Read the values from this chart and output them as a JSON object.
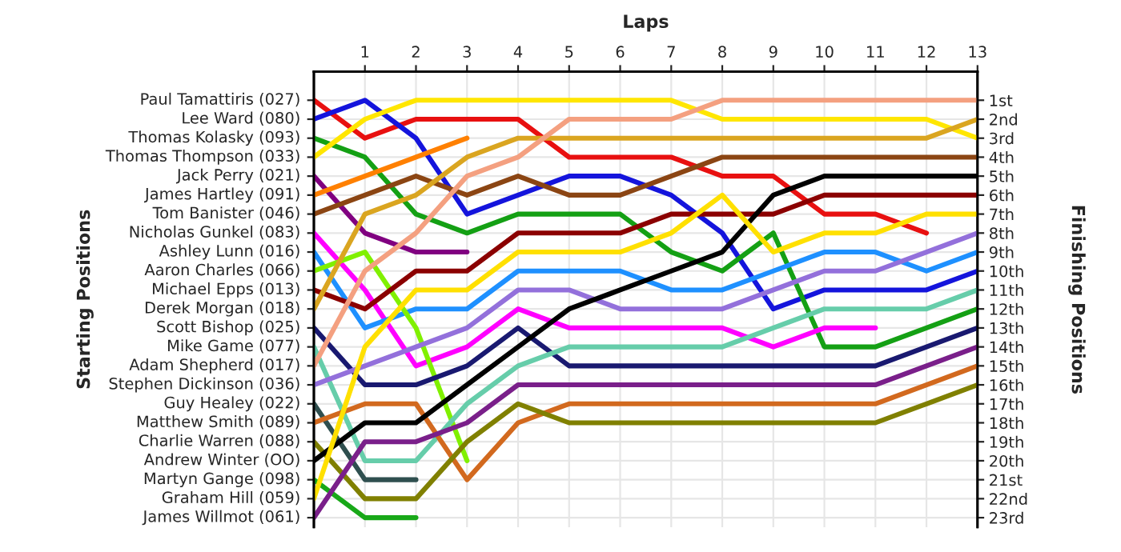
{
  "chart_data": {
    "type": "line",
    "xlabel": "Laps",
    "annotations": [
      "Starting Positions"
    ],
    "y2label": "Finishing Positions",
    "x": [
      0,
      1,
      2,
      3,
      4,
      5,
      6,
      7,
      8,
      9,
      10,
      11,
      12,
      13
    ],
    "xlim": [
      0,
      13
    ],
    "xticks": [
      1,
      2,
      3,
      4,
      5,
      6,
      7,
      8,
      9,
      10,
      11,
      12,
      13
    ],
    "y2lim": [
      23.5,
      -0.5
    ],
    "y2ticks": [
      {
        "value": 1,
        "label": "1st"
      },
      {
        "value": 2,
        "label": "2nd"
      },
      {
        "value": 3,
        "label": "3rd"
      },
      {
        "value": 4,
        "label": "4th"
      },
      {
        "value": 5,
        "label": "5th"
      },
      {
        "value": 6,
        "label": "6th"
      },
      {
        "value": 7,
        "label": "7th"
      },
      {
        "value": 8,
        "label": "8th"
      },
      {
        "value": 9,
        "label": "9th"
      },
      {
        "value": 10,
        "label": "10th"
      },
      {
        "value": 11,
        "label": "11th"
      },
      {
        "value": 12,
        "label": "12th"
      },
      {
        "value": 13,
        "label": "13th"
      },
      {
        "value": 14,
        "label": "14th"
      },
      {
        "value": 15,
        "label": "15th"
      },
      {
        "value": 16,
        "label": "16th"
      },
      {
        "value": 17,
        "label": "17th"
      },
      {
        "value": 18,
        "label": "18th"
      },
      {
        "value": 19,
        "label": "19th"
      },
      {
        "value": 20,
        "label": "20th"
      },
      {
        "value": 21,
        "label": "21st"
      },
      {
        "value": 22,
        "label": "22nd"
      },
      {
        "value": 23,
        "label": "23rd"
      }
    ],
    "grid": true,
    "marker": "none",
    "line_style": "solid",
    "series": [
      {
        "name": "Paul Tamattiris (027)",
        "axis": "y2",
        "color": "#e81010",
        "values": [
          1,
          3,
          2,
          2,
          2,
          4,
          4,
          4,
          5,
          5,
          7,
          7,
          8,
          null
        ]
      },
      {
        "name": "Lee Ward (080)",
        "axis": "y2",
        "color": "#1414dc",
        "values": [
          2,
          1,
          3,
          7,
          6,
          5,
          5,
          6,
          8,
          12,
          11,
          11,
          11,
          10
        ]
      },
      {
        "name": "Thomas Kolasky (093)",
        "axis": "y2",
        "color": "#14a014",
        "values": [
          3,
          4,
          7,
          8,
          7,
          7,
          7,
          9,
          10,
          8,
          14,
          14,
          13,
          12
        ]
      },
      {
        "name": "Thomas Thompson (033)",
        "axis": "y2",
        "color": "#ffe600",
        "values": [
          4,
          2,
          1,
          1,
          1,
          1,
          1,
          1,
          2,
          2,
          2,
          2,
          2,
          3
        ]
      },
      {
        "name": "Jack Perry (021)",
        "axis": "y2",
        "color": "#800080",
        "values": [
          5,
          8,
          9,
          9,
          null,
          null,
          null,
          null,
          null,
          null,
          null,
          null,
          null,
          null
        ]
      },
      {
        "name": "James Hartley (091)",
        "axis": "y2",
        "color": "#ff8000",
        "values": [
          6,
          5,
          4,
          3,
          null,
          null,
          null,
          null,
          null,
          null,
          null,
          null,
          null,
          null
        ]
      },
      {
        "name": "Tom Banister (046)",
        "axis": "y2",
        "color": "#8b4513",
        "values": [
          7,
          6,
          5,
          6,
          5,
          6,
          6,
          5,
          4,
          4,
          4,
          4,
          4,
          4
        ]
      },
      {
        "name": "Nicholas Gunkel (083)",
        "axis": "y2",
        "color": "#ff00ff",
        "values": [
          8,
          11,
          15,
          14,
          12,
          13,
          13,
          13,
          13,
          14,
          13,
          13,
          null,
          null
        ]
      },
      {
        "name": "Ashley Lunn (016)",
        "axis": "y2",
        "color": "#1e90ff",
        "values": [
          9,
          13,
          12,
          12,
          10,
          10,
          10,
          11,
          11,
          10,
          9,
          9,
          10,
          9
        ]
      },
      {
        "name": "Aaron Charles (066)",
        "axis": "y2",
        "color": "#80f000",
        "values": [
          10,
          9,
          13,
          20,
          null,
          null,
          null,
          null,
          null,
          null,
          null,
          null,
          null,
          null
        ]
      },
      {
        "name": "Michael Epps (013)",
        "axis": "y2",
        "color": "#8b0000",
        "values": [
          11,
          12,
          10,
          10,
          8,
          8,
          8,
          7,
          7,
          7,
          6,
          6,
          6,
          6
        ]
      },
      {
        "name": "Derek Morgan (018)",
        "axis": "y2",
        "color": "#daa520",
        "values": [
          12,
          7,
          6,
          4,
          3,
          3,
          3,
          3,
          3,
          3,
          3,
          3,
          3,
          2
        ]
      },
      {
        "name": "Scott Bishop (025)",
        "axis": "y2",
        "color": "#191970",
        "values": [
          13,
          16,
          16,
          15,
          13,
          15,
          15,
          15,
          15,
          15,
          15,
          15,
          14,
          13
        ]
      },
      {
        "name": "Mike Game (077)",
        "axis": "y2",
        "color": "#66cdaa",
        "values": [
          14,
          20,
          20,
          17,
          15,
          14,
          14,
          14,
          14,
          13,
          12,
          12,
          12,
          11
        ]
      },
      {
        "name": "Adam Shepherd (017)",
        "axis": "y2",
        "color": "#f4a080",
        "values": [
          15,
          10,
          8,
          5,
          4,
          2,
          2,
          2,
          1,
          1,
          1,
          1,
          1,
          1
        ]
      },
      {
        "name": "Stephen Dickinson (036)",
        "axis": "y2",
        "color": "#9370db",
        "values": [
          16,
          15,
          14,
          13,
          11,
          11,
          12,
          12,
          12,
          11,
          10,
          10,
          9,
          8
        ]
      },
      {
        "name": "Guy Healey (022)",
        "axis": "y2",
        "color": "#2f4f4f",
        "values": [
          17,
          21,
          21,
          null,
          null,
          null,
          null,
          null,
          null,
          null,
          null,
          null,
          null,
          null
        ]
      },
      {
        "name": "Matthew Smith (089)",
        "axis": "y2",
        "color": "#d2691e",
        "values": [
          18,
          17,
          17,
          21,
          18,
          17,
          17,
          17,
          17,
          17,
          17,
          17,
          16,
          15
        ]
      },
      {
        "name": "Charlie Warren (088)",
        "axis": "y2",
        "color": "#808000",
        "values": [
          19,
          22,
          22,
          19,
          17,
          18,
          18,
          18,
          18,
          18,
          18,
          18,
          17,
          16
        ]
      },
      {
        "name": "Andrew Winter (OO)",
        "axis": "y2",
        "color": "#000000",
        "values": [
          20,
          18,
          18,
          16,
          14,
          12,
          11,
          10,
          9,
          6,
          5,
          5,
          5,
          5
        ]
      },
      {
        "name": "Martyn Gange (098)",
        "axis": "y2",
        "color": "#18a818",
        "values": [
          21,
          23,
          23,
          null,
          null,
          null,
          null,
          null,
          null,
          null,
          null,
          null,
          null,
          null
        ]
      },
      {
        "name": "Graham Hill (059)",
        "axis": "y2",
        "color": "#ffe000",
        "values": [
          22,
          14,
          11,
          11,
          9,
          9,
          9,
          8,
          6,
          9,
          8,
          8,
          7,
          7
        ]
      },
      {
        "name": "James Willmot (061)",
        "axis": "y2",
        "color": "#7a1f8a",
        "values": [
          23,
          19,
          19,
          18,
          16,
          16,
          16,
          16,
          16,
          16,
          16,
          16,
          15,
          14
        ]
      }
    ]
  }
}
